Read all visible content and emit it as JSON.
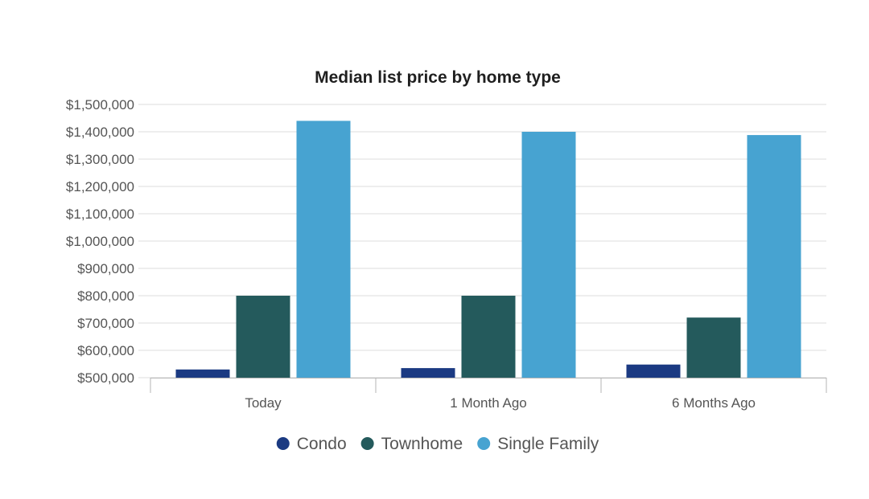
{
  "chart_data": {
    "type": "bar",
    "title": "Median list price by home type",
    "xlabel": "",
    "ylabel": "",
    "categories": [
      "Today",
      "1 Month Ago",
      "6 Months Ago"
    ],
    "series": [
      {
        "name": "Condo",
        "color": "#1b3a82",
        "values": [
          530000,
          535000,
          548000
        ]
      },
      {
        "name": "Townhome",
        "color": "#245a5c",
        "values": [
          800000,
          800000,
          720000
        ]
      },
      {
        "name": "Single Family",
        "color": "#47a3d1",
        "values": [
          1440000,
          1400000,
          1388000
        ]
      }
    ],
    "ylim": [
      500000,
      1500000
    ],
    "yticks": [
      500000,
      600000,
      700000,
      800000,
      900000,
      1000000,
      1100000,
      1200000,
      1300000,
      1400000,
      1500000
    ],
    "ytick_labels": [
      "$500,000",
      "$600,000",
      "$700,000",
      "$800,000",
      "$900,000",
      "$1,000,000",
      "$1,100,000",
      "$1,200,000",
      "$1,300,000",
      "$1,400,000",
      "$1,500,000"
    ],
    "grid": true,
    "legend_position": "bottom"
  }
}
